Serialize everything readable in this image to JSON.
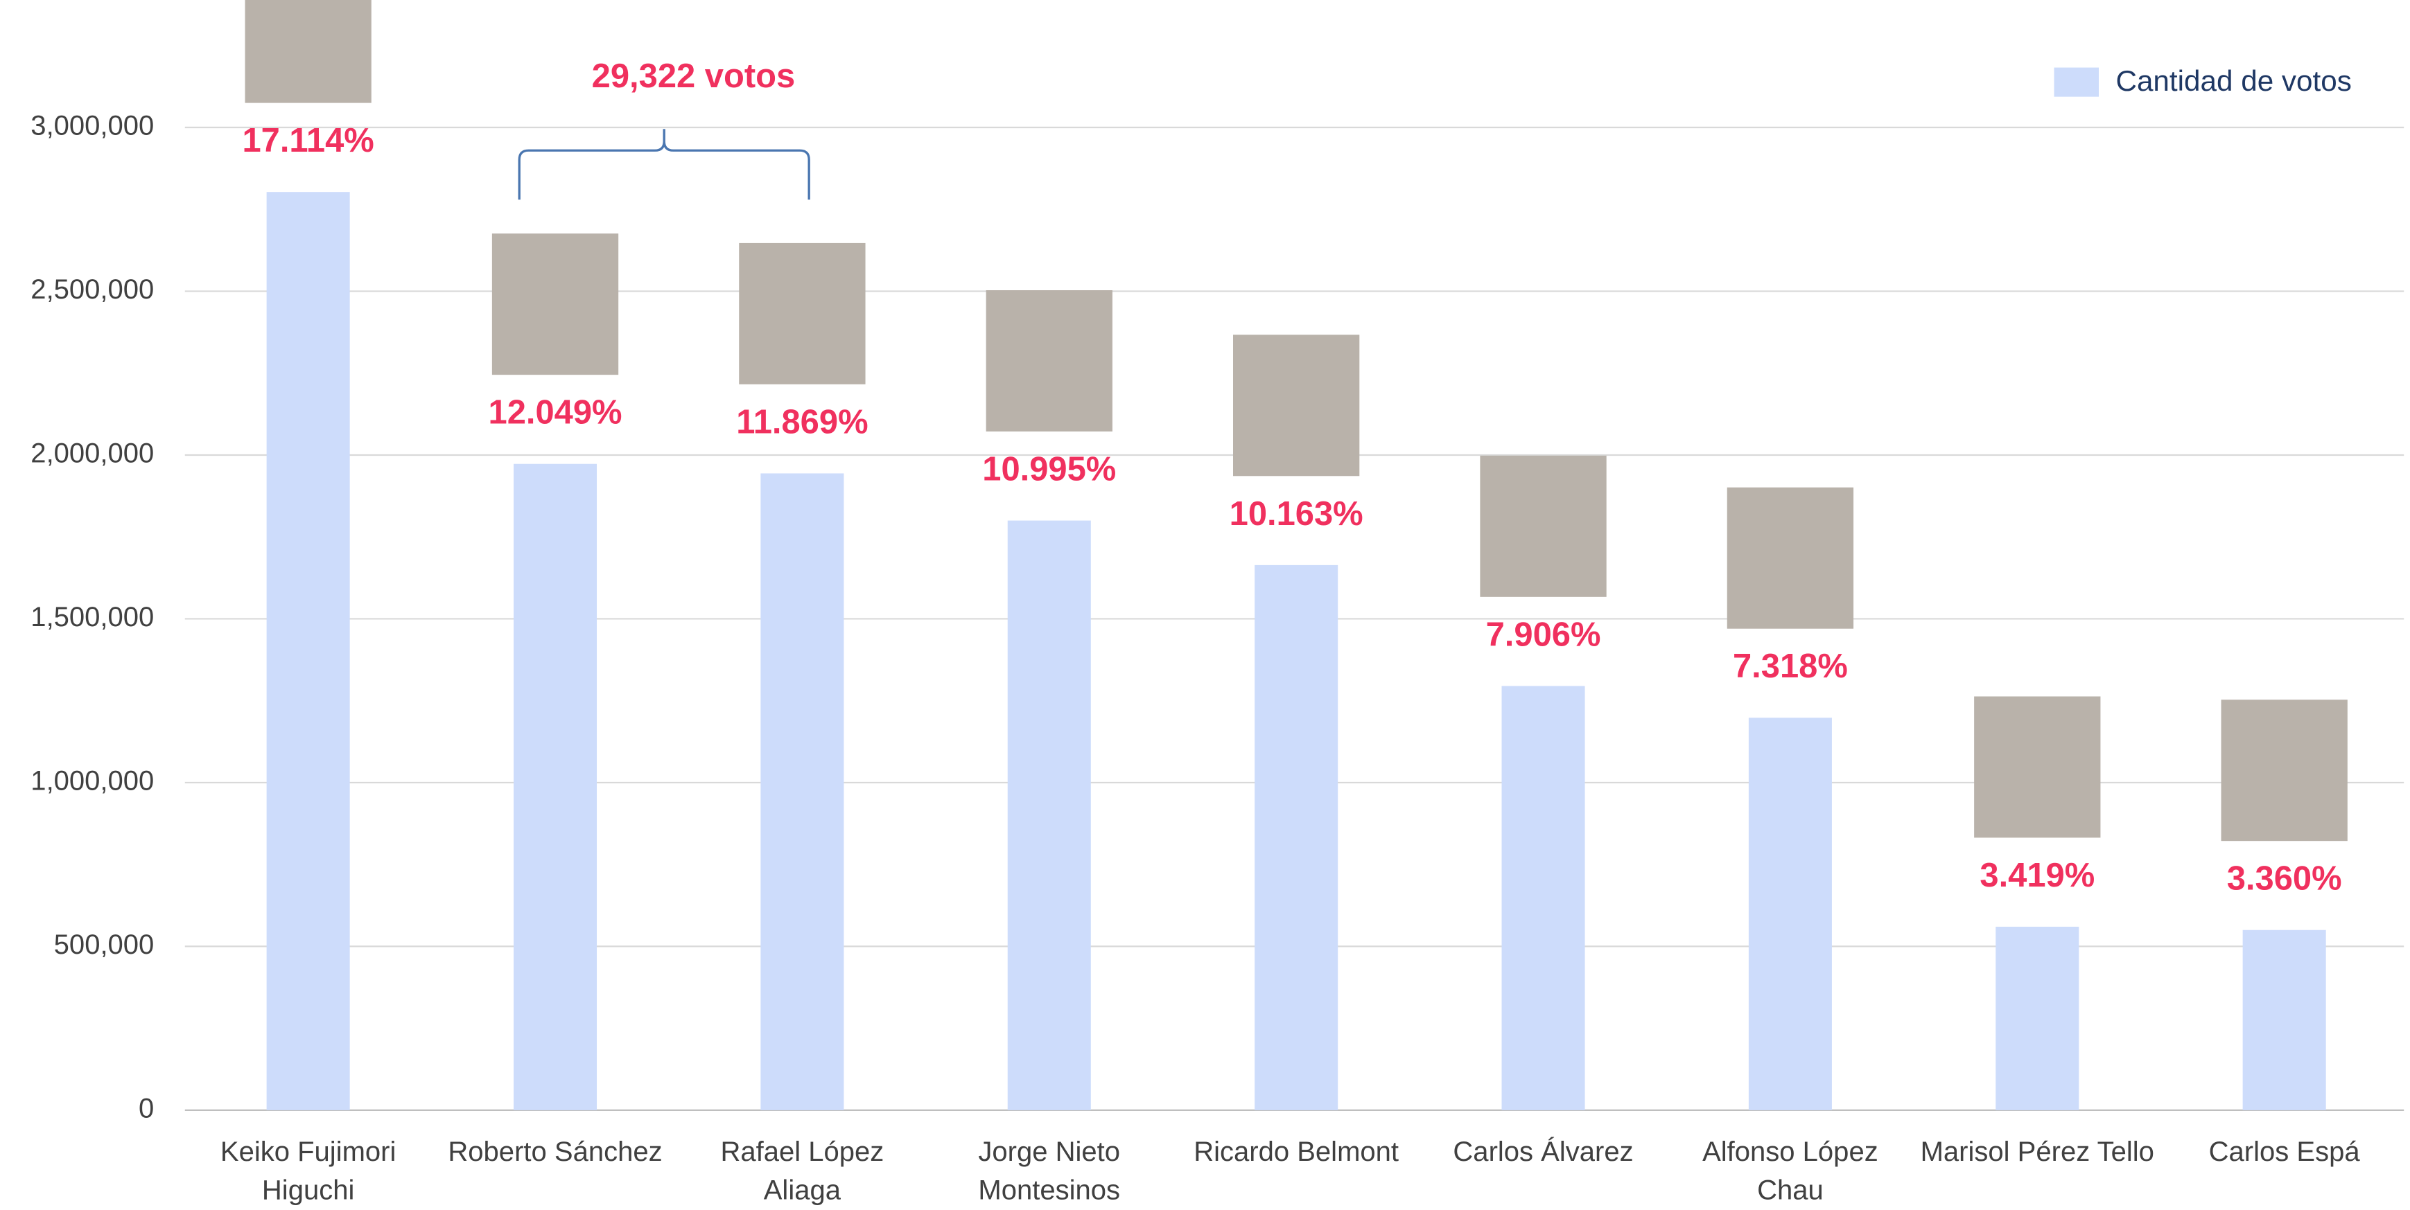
{
  "chart_data": {
    "type": "bar",
    "legend_label": "Cantidad de votos",
    "legend_position": "top-right",
    "annotation": "29,322 votos",
    "color": "#cddcfb",
    "label_color": "#f0305e",
    "categories": [
      "Keiko Fujimori Higuchi",
      "Roberto Sánchez",
      "Rafael López Aliaga",
      "Jorge Nieto Montesinos",
      "Ricardo Belmont",
      "Carlos Álvarez",
      "Alfonso López Chau",
      "Marisol Pérez Tello",
      "Carlos Espá"
    ],
    "values": [
      2803000,
      1973000,
      1944000,
      1800000,
      1664000,
      1295000,
      1198000,
      560000,
      550000
    ],
    "share_labels": [
      "17.114%",
      "12.049%",
      "11.869%",
      "10.995%",
      "10.163%",
      "7.906%",
      "7.318%",
      "3.419%",
      "3.360%"
    ],
    "ylim": [
      0,
      3300000
    ],
    "yticks": [
      0,
      {
        "value": 500000,
        "label": "500,000"
      },
      {
        "value": 1000000,
        "label": "1,000,000"
      },
      {
        "value": 1500000,
        "label": "1,500,000"
      },
      {
        "value": 2000000,
        "label": "2,000,000"
      },
      {
        "value": 2500000,
        "label": "2,500,000"
      },
      {
        "value": 3000000,
        "label": "3,000,000"
      }
    ],
    "grid": true
  }
}
